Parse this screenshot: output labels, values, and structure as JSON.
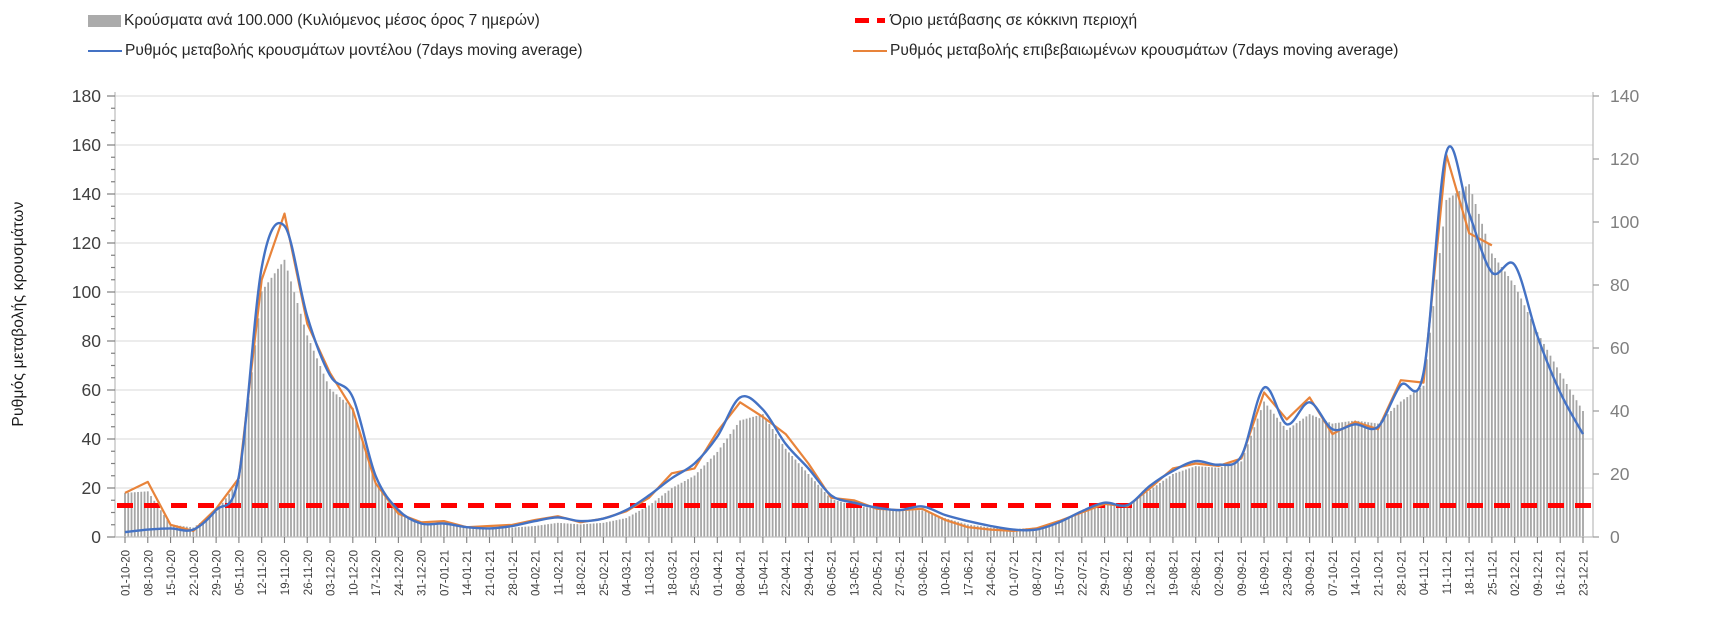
{
  "legend": {
    "bars_label": "Κρούσματα ανά 100.000 (Κυλιόμενος μέσος όρος 7 ημερών)",
    "threshold_label": "Όριο μετάβασης σε κόκκινη περιοχή",
    "model_label": "Ρυθμός μεταβολής κρουσμάτων μοντέλου (7days moving average)",
    "confirmed_label": "Ρυθμός μεταβολής επιβεβαιωμένων κρουσμάτων (7days moving average)"
  },
  "axes": {
    "left_title": "Ρυθμός μεταβολής κρουσμάτων",
    "left_ticks": [
      0,
      20,
      40,
      60,
      80,
      100,
      120,
      140,
      160,
      180
    ],
    "right_ticks": [
      0,
      20,
      40,
      60,
      80,
      100,
      120,
      140
    ]
  },
  "colors": {
    "bars": "#A6A6A6",
    "model_line": "#4472C4",
    "confirmed_line": "#E8833A",
    "threshold": "#FF0000",
    "gridline": "#D9D9D9",
    "axis_line": "#BFBFBF",
    "left_tick_text": "#404040",
    "right_tick_text": "#7F7F7F",
    "x_tick_text": "#404040"
  },
  "chart_data": {
    "type": "bar",
    "subtype": "combo-bar-two-lines-threshold",
    "title": "",
    "xlabel": "",
    "ylabel": "Ρυθμός μεταβολής κρουσμάτων",
    "x_weekly_labels": [
      "01-10-20",
      "08-10-20",
      "15-10-20",
      "22-10-20",
      "29-10-20",
      "05-11-20",
      "12-11-20",
      "19-11-20",
      "26-11-20",
      "03-12-20",
      "10-12-20",
      "17-12-20",
      "24-12-20",
      "31-12-20",
      "07-01-21",
      "14-01-21",
      "21-01-21",
      "28-01-21",
      "04-02-21",
      "11-02-21",
      "18-02-21",
      "25-02-21",
      "04-03-21",
      "11-03-21",
      "18-03-21",
      "25-03-21",
      "01-04-21",
      "08-04-21",
      "15-04-21",
      "22-04-21",
      "29-04-21",
      "06-05-21",
      "13-05-21",
      "20-05-21",
      "27-05-21",
      "03-06-21",
      "10-06-21",
      "17-06-21",
      "24-06-21",
      "01-07-21",
      "08-07-21",
      "15-07-21",
      "22-07-21",
      "29-07-21",
      "05-08-21",
      "12-08-21",
      "19-08-21",
      "26-08-21",
      "02-09-21",
      "09-09-21",
      "16-09-21",
      "23-09-21",
      "30-09-21",
      "07-10-21",
      "14-10-21",
      "21-10-21",
      "28-10-21",
      "04-11-21",
      "11-11-21",
      "18-11-21",
      "25-11-21",
      "02-12-21",
      "09-12-21",
      "16-12-21",
      "23-12-21"
    ],
    "y_left_axis": {
      "min": 0,
      "max": 180,
      "tick_step": 20
    },
    "y_right_axis": {
      "min": 0,
      "max": 140,
      "tick_step": 20
    },
    "grid": "horizontal",
    "legend_position": "top",
    "series": [
      {
        "name": "Κρούσματα ανά 100.000 (Κυλιόμενος μέσος όρος 7 ημερών)",
        "type": "bar",
        "axis": "right",
        "color": "#A6A6A6",
        "values": [
          14,
          14.5,
          4,
          3,
          8,
          18,
          78,
          88,
          64,
          47,
          41,
          17,
          8,
          4.5,
          4,
          3,
          3,
          3,
          3.5,
          4.5,
          4,
          4.5,
          6,
          10,
          15.5,
          19.5,
          27,
          37,
          39,
          28,
          20,
          12,
          10,
          9,
          8.5,
          8.5,
          6,
          4,
          3,
          2.5,
          3,
          5,
          8,
          10.5,
          10,
          15,
          20,
          22.5,
          22,
          24,
          43,
          34,
          39,
          36,
          37,
          36,
          43,
          48,
          107,
          112,
          90,
          80,
          65,
          52,
          40
        ]
      },
      {
        "name": "Ρυθμός μεταβολής κρουσμάτων μοντέλου (7days moving average)",
        "type": "line",
        "axis": "left",
        "color": "#4472C4",
        "values": [
          2,
          3,
          3.5,
          3,
          11,
          25,
          110,
          127,
          90,
          66,
          57,
          25,
          11,
          5.5,
          5.5,
          4,
          3.5,
          4.5,
          6.5,
          8,
          6.5,
          7.5,
          11,
          17,
          24,
          30,
          41,
          57,
          52,
          38,
          28,
          17,
          14,
          12,
          11,
          12.5,
          9,
          6.5,
          4.5,
          3,
          3,
          6,
          10.5,
          14,
          13,
          21,
          27,
          31,
          29.5,
          33,
          61,
          46,
          55,
          44,
          46,
          45,
          62,
          67,
          157,
          132,
          108,
          111,
          82,
          59,
          42
        ]
      },
      {
        "name": "Ρυθμός μεταβολής επιβεβαιωμένων κρουσμάτων (7days moving average)",
        "type": "line",
        "axis": "left",
        "color": "#E8833A",
        "values": [
          18,
          22.5,
          5,
          2.5,
          11.5,
          24,
          105,
          132,
          87,
          67,
          52,
          22,
          9.5,
          6,
          6.5,
          4,
          4.5,
          5,
          7,
          8.5,
          6,
          7.5,
          10.5,
          16,
          26,
          28,
          43,
          55,
          49,
          42,
          30,
          16,
          15,
          11.5,
          11,
          11.5,
          7,
          4,
          3,
          2.5,
          3.5,
          6.5,
          10,
          13.5,
          12.5,
          20,
          28,
          30,
          29,
          32,
          59,
          48,
          57,
          42,
          47,
          44,
          64,
          63,
          156,
          124,
          119,
          null,
          null,
          null,
          null
        ]
      },
      {
        "name": "Όριο μετάβασης σε κόκκινη περιοχή",
        "type": "threshold-line",
        "axis": "right",
        "color": "#FF0000",
        "value": 10
      }
    ]
  }
}
